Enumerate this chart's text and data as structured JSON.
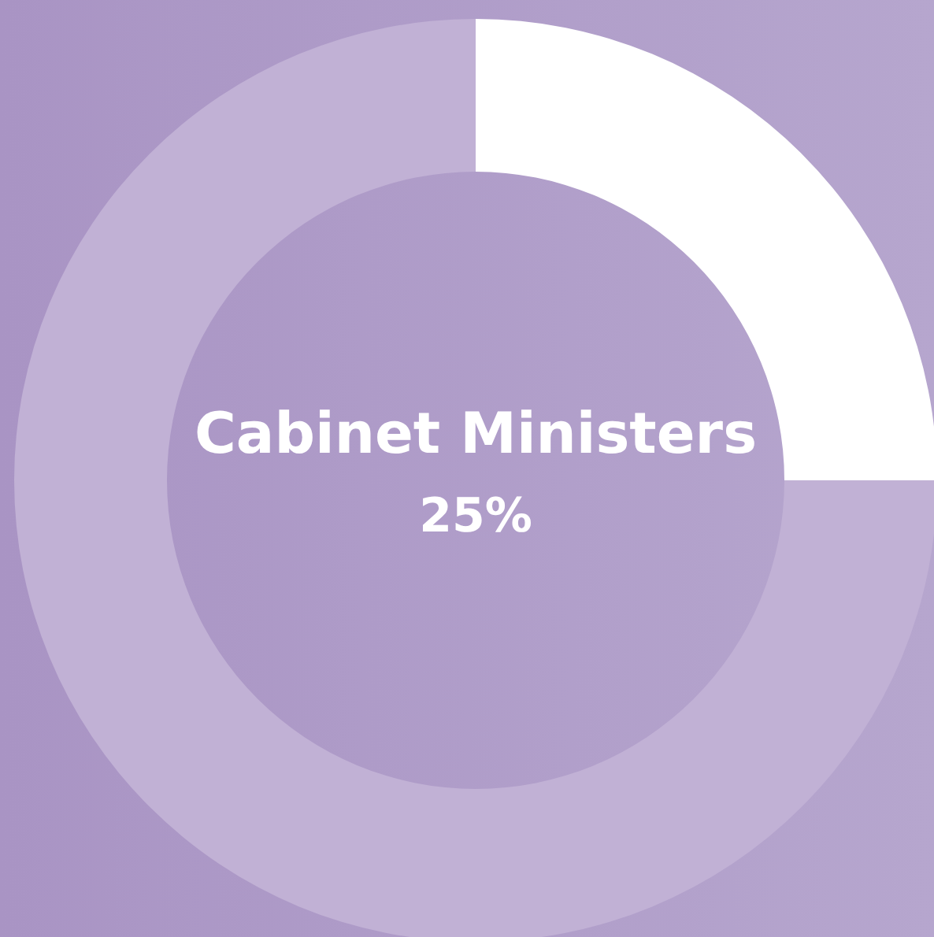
{
  "chart_data": {
    "type": "donut",
    "categories": [
      "Cabinet Ministers",
      null
    ],
    "values": [
      25,
      75
    ],
    "colors": [
      "#ffffff",
      "#c1b1d5"
    ],
    "value_labels": [
      "25%",
      null
    ]
  }
}
